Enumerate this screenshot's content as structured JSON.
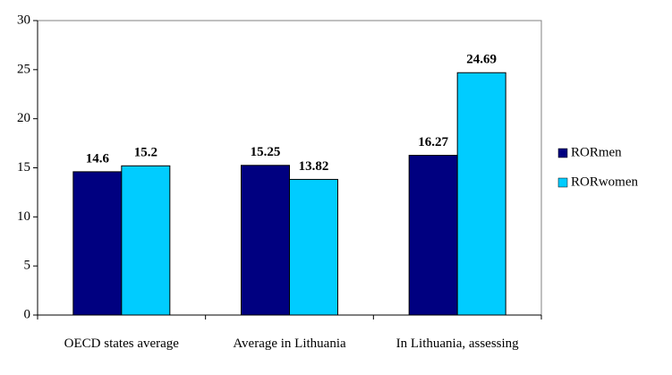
{
  "chart_data": {
    "type": "bar",
    "categories": [
      "OECD states average",
      "Average in Lithuania",
      "In Lithuania, assessing"
    ],
    "series": [
      {
        "name": "RORmen",
        "color": "#000080",
        "values": [
          14.6,
          15.25,
          16.27
        ]
      },
      {
        "name": "RORwomen",
        "color": "#00ccff",
        "values": [
          15.2,
          13.82,
          24.69
        ]
      }
    ],
    "ylim": [
      0,
      30
    ],
    "yticks": [
      0,
      5,
      10,
      15,
      20,
      25,
      30
    ],
    "legend": "right"
  }
}
